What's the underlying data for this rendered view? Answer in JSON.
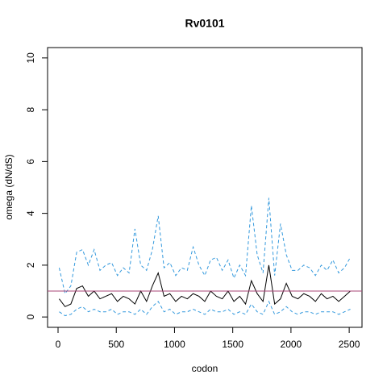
{
  "chart_data": {
    "type": "line",
    "title": "Rv0101",
    "xlabel": "codon",
    "ylabel": "omega (dN/dS)",
    "x": [
      10,
      60,
      110,
      160,
      210,
      260,
      310,
      360,
      410,
      460,
      510,
      560,
      610,
      660,
      710,
      760,
      810,
      860,
      910,
      960,
      1010,
      1060,
      1110,
      1160,
      1210,
      1260,
      1310,
      1360,
      1410,
      1460,
      1510,
      1560,
      1610,
      1660,
      1710,
      1760,
      1810,
      1860,
      1910,
      1960,
      2010,
      2060,
      2110,
      2160,
      2210,
      2260,
      2310,
      2360,
      2410,
      2460,
      2510
    ],
    "series": [
      {
        "color": "#000000",
        "linestyle": "solid",
        "values": [
          0.7,
          0.4,
          0.5,
          1.1,
          1.2,
          0.8,
          1.0,
          0.7,
          0.8,
          0.9,
          0.6,
          0.8,
          0.7,
          0.5,
          1.0,
          0.6,
          1.2,
          1.7,
          0.8,
          0.9,
          0.6,
          0.8,
          0.7,
          0.9,
          0.8,
          0.6,
          1.0,
          0.8,
          0.7,
          1.0,
          0.6,
          0.8,
          0.5,
          1.4,
          0.9,
          0.6,
          2.0,
          0.5,
          0.7,
          1.3,
          0.8,
          0.7,
          0.9,
          0.8,
          0.6,
          0.9,
          0.7,
          0.8,
          0.6,
          0.8,
          1.0
        ]
      },
      {
        "color": "#3399dd",
        "linestyle": "dashed",
        "values": [
          1.9,
          0.9,
          1.2,
          2.5,
          2.6,
          2.0,
          2.6,
          1.8,
          2.0,
          2.1,
          1.6,
          1.9,
          1.7,
          3.4,
          2.0,
          1.8,
          2.6,
          3.9,
          1.9,
          2.1,
          1.6,
          1.9,
          1.8,
          2.7,
          2.0,
          1.6,
          2.2,
          2.3,
          1.8,
          2.2,
          1.5,
          2.0,
          1.6,
          4.3,
          2.4,
          1.7,
          4.6,
          1.6,
          3.6,
          2.4,
          1.8,
          1.8,
          2.0,
          1.9,
          1.6,
          2.0,
          1.8,
          2.2,
          1.7,
          1.9,
          2.3
        ]
      },
      {
        "color": "#3399dd",
        "linestyle": "dashed",
        "values": [
          0.2,
          0.05,
          0.1,
          0.3,
          0.4,
          0.2,
          0.3,
          0.2,
          0.2,
          0.3,
          0.1,
          0.2,
          0.2,
          0.1,
          0.3,
          0.1,
          0.4,
          0.6,
          0.2,
          0.3,
          0.1,
          0.2,
          0.2,
          0.3,
          0.2,
          0.1,
          0.3,
          0.2,
          0.2,
          0.3,
          0.1,
          0.2,
          0.1,
          0.5,
          0.2,
          0.1,
          0.6,
          0.1,
          0.2,
          0.4,
          0.2,
          0.1,
          0.2,
          0.2,
          0.1,
          0.2,
          0.2,
          0.2,
          0.1,
          0.2,
          0.3
        ]
      }
    ],
    "hline": {
      "value": 1,
      "color": "#aa4477"
    },
    "xlim": [
      -90,
      2610
    ],
    "xticks": [
      0,
      500,
      1000,
      1500,
      2000,
      2500
    ],
    "ylim": [
      -0.4,
      10.4
    ],
    "yticks": [
      0,
      2,
      4,
      6,
      8,
      10
    ]
  }
}
